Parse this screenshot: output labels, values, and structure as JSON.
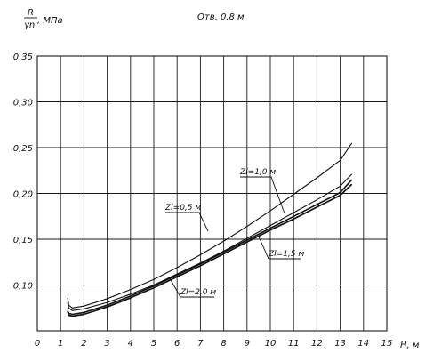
{
  "chart_data": {
    "type": "line",
    "title": "Отв. 0,8 м",
    "ylabel_top": "R",
    "ylabel_bottom": "γn",
    "ylabel_unit": ", МПа",
    "xlabel": "H, м",
    "xlim": [
      0,
      15
    ],
    "ylim": [
      0.05,
      0.35
    ],
    "grid": true,
    "x_ticks": [
      "0",
      "1",
      "2",
      "3",
      "4",
      "5",
      "6",
      "7",
      "8",
      "9",
      "10",
      "11",
      "12",
      "13",
      "14",
      "15"
    ],
    "y_ticks": [
      "0,10",
      "0,15",
      "0,20",
      "0,25",
      "0,30",
      "0,35"
    ],
    "series": [
      {
        "name": "Zl=0,5 м",
        "x": [
          1.3,
          1.35,
          1.5,
          2,
          3,
          4,
          5,
          6,
          7,
          8,
          9,
          10,
          11,
          12,
          13,
          13.5
        ],
        "y": [
          0.086,
          0.078,
          0.075,
          0.077,
          0.085,
          0.095,
          0.106,
          0.119,
          0.133,
          0.148,
          0.164,
          0.181,
          0.199,
          0.217,
          0.236,
          0.255
        ]
      },
      {
        "name": "Zl=1,0 м",
        "x": [
          1.3,
          1.35,
          1.5,
          2,
          3,
          4,
          5,
          6,
          7,
          8,
          9,
          10,
          11,
          12,
          13,
          13.5
        ],
        "y": [
          0.081,
          0.075,
          0.072,
          0.074,
          0.081,
          0.09,
          0.1,
          0.112,
          0.124,
          0.137,
          0.151,
          0.165,
          0.179,
          0.193,
          0.208,
          0.221
        ]
      },
      {
        "name": "Zl=1,5 м",
        "x": [
          1.3,
          1.35,
          1.5,
          2,
          3,
          4,
          5,
          6,
          7,
          8,
          9,
          10,
          11,
          12,
          13,
          13.5
        ],
        "y": [
          0.072,
          0.069,
          0.068,
          0.07,
          0.078,
          0.088,
          0.099,
          0.111,
          0.123,
          0.136,
          0.149,
          0.162,
          0.175,
          0.188,
          0.201,
          0.215
        ]
      },
      {
        "name": "Zl=2,0 м",
        "x": [
          1.3,
          1.35,
          1.5,
          2,
          3,
          4,
          5,
          6,
          7,
          8,
          9,
          10,
          11,
          12,
          13,
          13.5
        ],
        "y": [
          0.071,
          0.067,
          0.066,
          0.068,
          0.076,
          0.086,
          0.097,
          0.109,
          0.121,
          0.134,
          0.147,
          0.16,
          0.172,
          0.185,
          0.198,
          0.21
        ]
      }
    ],
    "annotations": [
      "Zl=1,0 м",
      "Zl=0,5 м",
      "Zl=1,5 м",
      "Zl=2,0 м"
    ]
  }
}
